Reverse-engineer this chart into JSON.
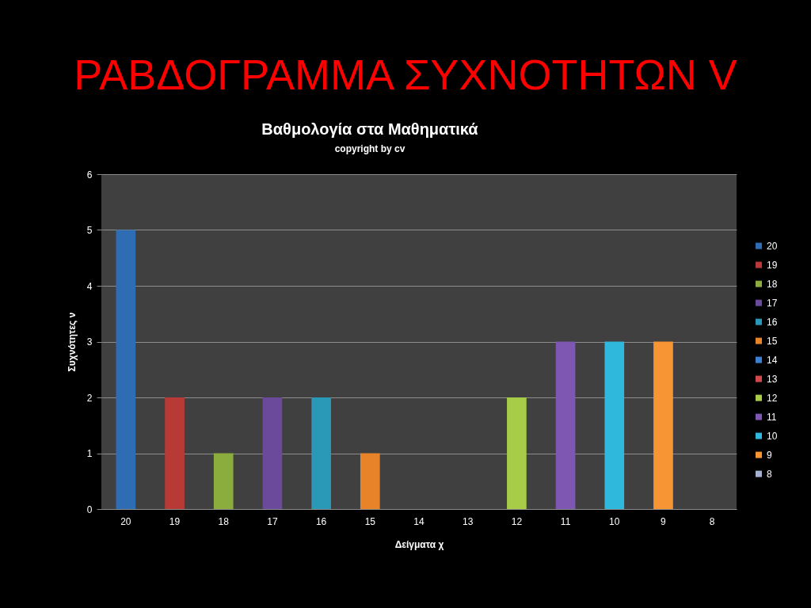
{
  "chart_data": {
    "type": "bar",
    "title": "Βαθμολογία στα Μαθηματικά",
    "subtitle": "copyright by cv",
    "xlabel": "Δείγματα χ",
    "ylabel": "Συχνότητες ν",
    "annotations": [
      "ΡΑΒΔΟΓΡΑΜΜΑ ΣΥΧΝΟΤΗΤΩΝ V"
    ],
    "categories": [
      "20",
      "19",
      "18",
      "17",
      "16",
      "15",
      "14",
      "13",
      "12",
      "11",
      "10",
      "9",
      "8"
    ],
    "stacked": true,
    "series": [
      {
        "name": "20",
        "color": "#2e6db4",
        "values": [
          5,
          null,
          null,
          null,
          null,
          null,
          null,
          null,
          null,
          null,
          null,
          null,
          null
        ]
      },
      {
        "name": "19",
        "color": "#b73a37",
        "values": [
          null,
          2,
          null,
          null,
          null,
          null,
          null,
          null,
          null,
          null,
          null,
          null,
          null
        ]
      },
      {
        "name": "18",
        "color": "#8aad3e",
        "values": [
          null,
          null,
          1,
          null,
          null,
          null,
          null,
          null,
          null,
          null,
          null,
          null,
          null
        ]
      },
      {
        "name": "17",
        "color": "#6c4a9b",
        "values": [
          null,
          null,
          null,
          2,
          null,
          null,
          null,
          null,
          null,
          null,
          null,
          null,
          null
        ]
      },
      {
        "name": "16",
        "color": "#2a99b8",
        "values": [
          null,
          null,
          null,
          null,
          2,
          null,
          null,
          null,
          null,
          null,
          null,
          null,
          null
        ]
      },
      {
        "name": "15",
        "color": "#e8832a",
        "values": [
          null,
          null,
          null,
          null,
          null,
          1,
          null,
          null,
          null,
          null,
          null,
          null,
          null
        ]
      },
      {
        "name": "14",
        "color": "#3d80d3",
        "values": [
          null,
          null,
          null,
          null,
          null,
          null,
          0,
          null,
          null,
          null,
          null,
          null,
          null
        ]
      },
      {
        "name": "13",
        "color": "#d24a47",
        "values": [
          null,
          null,
          null,
          null,
          null,
          null,
          null,
          0,
          null,
          null,
          null,
          null,
          null
        ]
      },
      {
        "name": "12",
        "color": "#a6cc48",
        "values": [
          null,
          null,
          null,
          null,
          null,
          null,
          null,
          null,
          2,
          null,
          null,
          null,
          null
        ]
      },
      {
        "name": "11",
        "color": "#7e57b2",
        "values": [
          null,
          null,
          null,
          null,
          null,
          null,
          null,
          null,
          null,
          3,
          null,
          null,
          null
        ]
      },
      {
        "name": "10",
        "color": "#30b8dc",
        "values": [
          null,
          null,
          null,
          null,
          null,
          null,
          null,
          null,
          null,
          null,
          3,
          null,
          null
        ]
      },
      {
        "name": "9",
        "color": "#f79433",
        "values": [
          null,
          null,
          null,
          null,
          null,
          null,
          null,
          null,
          null,
          null,
          null,
          3,
          null
        ]
      },
      {
        "name": "8",
        "color": "#a3b1d0",
        "values": [
          null,
          null,
          null,
          null,
          null,
          null,
          null,
          null,
          null,
          null,
          null,
          null,
          0
        ]
      }
    ],
    "ylim": [
      0,
      6
    ],
    "yticks": [
      0,
      1,
      2,
      3,
      4,
      5,
      6
    ],
    "grid": "y",
    "legend": "right"
  }
}
